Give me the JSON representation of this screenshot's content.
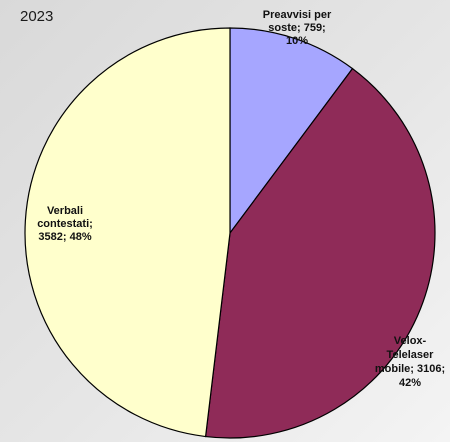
{
  "chart_data": {
    "type": "pie",
    "title": "2023",
    "slices": [
      {
        "label_lines": [
          "Preavvisi per",
          "soste; 759;",
          "10%"
        ],
        "label": "Preavvisi per soste",
        "value": 759,
        "percent": "10%",
        "color": "#a6a6ff"
      },
      {
        "label_lines": [
          "Velox-",
          "Telelaser",
          "mobile; 3106;",
          "42%"
        ],
        "label": "Velox-Telelaser mobile",
        "value": 3106,
        "percent": "42%",
        "color": "#8f2b58"
      },
      {
        "label_lines": [
          "Verbali",
          "contestati;",
          "3582; 48%"
        ],
        "label": "Verbali contestati",
        "value": 3582,
        "percent": "48%",
        "color": "#ffffcc"
      }
    ],
    "start_angle_deg": 0,
    "direction": "clockwise",
    "legend": "none",
    "data_labels": "category; value; percent",
    "background_color": "#e2e2e2",
    "outline_color": "#000000"
  }
}
